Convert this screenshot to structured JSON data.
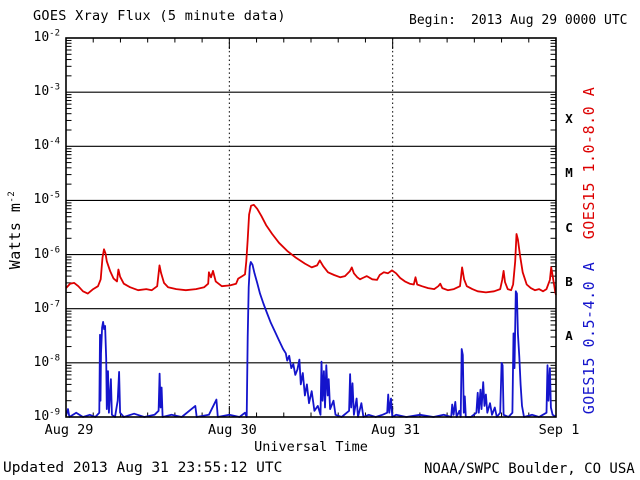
{
  "header": {
    "title": "GOES Xray Flux (5 minute data)",
    "begin_label": "Begin:",
    "begin_value": "2013 Aug 29 0000 UTC"
  },
  "footer": {
    "updated": "Updated 2013 Aug 31 23:55:12 UTC",
    "source": "NOAA/SWPC Boulder, CO USA"
  },
  "colors": {
    "axis": "#000000",
    "background": "#ffffff",
    "long_series": "#dd0000",
    "short_series": "#1414cc"
  },
  "chart_data": {
    "type": "line",
    "title": "GOES Xray Flux (5 minute data)",
    "xlabel": "Universal Time",
    "ylabel": {
      "text": "Watts m",
      "sup": "-2"
    },
    "x_start": "2013 Aug 29 0000 UTC",
    "x_span_hours": 72,
    "x_ticks": [
      {
        "hours": 0,
        "label": "Aug 29"
      },
      {
        "hours": 24,
        "label": "Aug 30"
      },
      {
        "hours": 48,
        "label": "Aug 31"
      },
      {
        "hours": 72,
        "label": "Sep 1"
      }
    ],
    "x_minor_tick_interval_hours": 4,
    "y_scale": "log",
    "ylim": [
      1e-09,
      0.01
    ],
    "y_tick_exponents": [
      -2,
      -3,
      -4,
      -5,
      -6,
      -7,
      -8,
      -9
    ],
    "grid": {
      "horizontal_decade_lines": [
        -3,
        -4,
        -5,
        -6,
        -7,
        -8
      ],
      "vertical_dotted_hours": [
        24,
        48
      ]
    },
    "flare_classes": [
      {
        "label": "X",
        "center_exponent": -3.5
      },
      {
        "label": "M",
        "center_exponent": -4.5
      },
      {
        "label": "C",
        "center_exponent": -5.5
      },
      {
        "label": "B",
        "center_exponent": -6.5
      },
      {
        "label": "A",
        "center_exponent": -7.5
      }
    ],
    "series": [
      {
        "name": "GOES15 1.0-8.0 A",
        "color": "#dd0000",
        "points": [
          [
            0,
            2.4e-07
          ],
          [
            0.6,
            2.9e-07
          ],
          [
            1.2,
            3e-07
          ],
          [
            1.8,
            2.6e-07
          ],
          [
            2.5,
            2.1e-07
          ],
          [
            3.2,
            1.9e-07
          ],
          [
            4.0,
            2.3e-07
          ],
          [
            4.7,
            2.6e-07
          ],
          [
            5.1,
            3.5e-07
          ],
          [
            5.36,
            8.8e-07
          ],
          [
            5.58,
            1.25e-06
          ],
          [
            5.8,
            1.05e-06
          ],
          [
            6.0,
            7.5e-07
          ],
          [
            6.5,
            4.9e-07
          ],
          [
            7.0,
            3.6e-07
          ],
          [
            7.5,
            3.2e-07
          ],
          [
            7.7,
            5.3e-07
          ],
          [
            7.95,
            3.9e-07
          ],
          [
            8.5,
            2.9e-07
          ],
          [
            9.4,
            2.5e-07
          ],
          [
            10.6,
            2.2e-07
          ],
          [
            11.8,
            2.3e-07
          ],
          [
            12.6,
            2.2e-07
          ],
          [
            13.4,
            2.6e-07
          ],
          [
            13.74,
            6.3e-07
          ],
          [
            13.96,
            4.6e-07
          ],
          [
            14.4,
            3e-07
          ],
          [
            15.0,
            2.5e-07
          ],
          [
            16.2,
            2.3e-07
          ],
          [
            17.6,
            2.2e-07
          ],
          [
            19.1,
            2.3e-07
          ],
          [
            20.3,
            2.5e-07
          ],
          [
            20.9,
            2.9e-07
          ],
          [
            21.0,
            4.7e-07
          ],
          [
            21.3,
            3.8e-07
          ],
          [
            21.6,
            5e-07
          ],
          [
            22.0,
            3.2e-07
          ],
          [
            22.9,
            2.6e-07
          ],
          [
            24.1,
            2.7e-07
          ],
          [
            25.0,
            2.9e-07
          ],
          [
            25.3,
            3.6e-07
          ],
          [
            25.9,
            4e-07
          ],
          [
            26.3,
            4.3e-07
          ],
          [
            26.5,
            7.5e-07
          ],
          [
            26.7,
            1.9e-06
          ],
          [
            26.9,
            5.5e-06
          ],
          [
            27.2,
            8e-06
          ],
          [
            27.6,
            8.3e-06
          ],
          [
            28.1,
            7e-06
          ],
          [
            28.7,
            5.2e-06
          ],
          [
            29.4,
            3.5e-06
          ],
          [
            30.3,
            2.4e-06
          ],
          [
            31.3,
            1.65e-06
          ],
          [
            32.5,
            1.17e-06
          ],
          [
            33.8,
            8.7e-07
          ],
          [
            35.1,
            6.8e-07
          ],
          [
            36.1,
            5.8e-07
          ],
          [
            36.9,
            6.3e-07
          ],
          [
            37.3,
            7.8e-07
          ],
          [
            37.8,
            6.1e-07
          ],
          [
            38.5,
            4.7e-07
          ],
          [
            39.4,
            4.2e-07
          ],
          [
            40.3,
            3.8e-07
          ],
          [
            41.0,
            4e-07
          ],
          [
            41.7,
            4.9e-07
          ],
          [
            42.0,
            5.8e-07
          ],
          [
            42.3,
            4.5e-07
          ],
          [
            42.8,
            3.8e-07
          ],
          [
            43.2,
            3.5e-07
          ],
          [
            43.6,
            3.7e-07
          ],
          [
            44.2,
            4e-07
          ],
          [
            45.0,
            3.5e-07
          ],
          [
            45.7,
            3.4e-07
          ],
          [
            46.1,
            4.2e-07
          ],
          [
            46.7,
            4.7e-07
          ],
          [
            47.3,
            4.5e-07
          ],
          [
            47.9,
            5.1e-07
          ],
          [
            48.5,
            4.5e-07
          ],
          [
            49.1,
            3.7e-07
          ],
          [
            49.8,
            3.2e-07
          ],
          [
            50.5,
            2.9e-07
          ],
          [
            51.1,
            2.8e-07
          ],
          [
            51.35,
            3.8e-07
          ],
          [
            51.6,
            2.8e-07
          ],
          [
            52.3,
            2.6e-07
          ],
          [
            53.2,
            2.4e-07
          ],
          [
            54.1,
            2.3e-07
          ],
          [
            54.7,
            2.6e-07
          ],
          [
            55.0,
            2.9e-07
          ],
          [
            55.3,
            2.4e-07
          ],
          [
            56.1,
            2.2e-07
          ],
          [
            57.0,
            2.3e-07
          ],
          [
            57.9,
            2.6e-07
          ],
          [
            58.2,
            5.8e-07
          ],
          [
            58.5,
            3.5e-07
          ],
          [
            58.9,
            2.6e-07
          ],
          [
            59.7,
            2.3e-07
          ],
          [
            60.5,
            2.1e-07
          ],
          [
            61.7,
            2e-07
          ],
          [
            62.9,
            2.1e-07
          ],
          [
            63.8,
            2.3e-07
          ],
          [
            64.1,
            3.4e-07
          ],
          [
            64.3,
            5e-07
          ],
          [
            64.5,
            3.1e-07
          ],
          [
            64.9,
            2.3e-07
          ],
          [
            65.4,
            2.2e-07
          ],
          [
            65.7,
            2.8e-07
          ],
          [
            66.0,
            7.5e-07
          ],
          [
            66.2,
            2.4e-06
          ],
          [
            66.4,
            1.9e-06
          ],
          [
            66.7,
            1e-06
          ],
          [
            67.1,
            4.7e-07
          ],
          [
            67.7,
            2.8e-07
          ],
          [
            68.3,
            2.4e-07
          ],
          [
            68.9,
            2.2e-07
          ],
          [
            69.5,
            2.3e-07
          ],
          [
            70.1,
            2.1e-07
          ],
          [
            70.6,
            2.3e-07
          ],
          [
            71.1,
            3.4e-07
          ],
          [
            71.3,
            5.8e-07
          ],
          [
            71.5,
            4.1e-07
          ],
          [
            71.9,
            2e-07
          ],
          [
            72,
            1.8e-07
          ]
        ]
      },
      {
        "name": "GOES15 0.5-4.0 A",
        "color": "#1414cc",
        "points": [
          [
            0,
            1.05e-09
          ],
          [
            0.3,
            1.4e-09
          ],
          [
            0.5,
            1e-09
          ],
          [
            1.5,
            1.2e-09
          ],
          [
            2.5,
            1e-09
          ],
          [
            3.5,
            1.1e-09
          ],
          [
            4.3,
            1e-09
          ],
          [
            4.9,
            1.2e-09
          ],
          [
            5.0,
            3.3e-08
          ],
          [
            5.07,
            2e-09
          ],
          [
            5.15,
            1.5e-08
          ],
          [
            5.3,
            4.5e-08
          ],
          [
            5.45,
            5.7e-08
          ],
          [
            5.6,
            4.2e-08
          ],
          [
            5.75,
            4.8e-08
          ],
          [
            5.9,
            1.2e-08
          ],
          [
            6.0,
            1.4e-09
          ],
          [
            6.17,
            7e-09
          ],
          [
            6.3,
            1.2e-09
          ],
          [
            6.6,
            5e-09
          ],
          [
            6.75,
            1.1e-09
          ],
          [
            7.2,
            1e-09
          ],
          [
            7.6,
            2e-09
          ],
          [
            7.8,
            6.8e-09
          ],
          [
            7.95,
            1.2e-09
          ],
          [
            8.5,
            1e-09
          ],
          [
            10,
            1.15e-09
          ],
          [
            11.5,
            1e-09
          ],
          [
            13,
            1.1e-09
          ],
          [
            13.6,
            1.3e-09
          ],
          [
            13.75,
            6.3e-09
          ],
          [
            13.9,
            1.5e-09
          ],
          [
            14.05,
            3.5e-09
          ],
          [
            14.2,
            1e-09
          ],
          [
            15.5,
            1.1e-09
          ],
          [
            17,
            1e-09
          ],
          [
            19.0,
            1.6e-09
          ],
          [
            19.2,
            1e-09
          ],
          [
            21,
            1.1e-09
          ],
          [
            22.1,
            2.1e-09
          ],
          [
            22.3,
            1e-09
          ],
          [
            24,
            1.1e-09
          ],
          [
            25.5,
            1e-09
          ],
          [
            26.3,
            1.2e-09
          ],
          [
            26.55,
            1e-09
          ],
          [
            26.7,
            3e-08
          ],
          [
            26.85,
            2.5e-07
          ],
          [
            27.0,
            6e-07
          ],
          [
            27.15,
            7.3e-07
          ],
          [
            27.4,
            6.5e-07
          ],
          [
            27.7,
            4.5e-07
          ],
          [
            28.1,
            3e-07
          ],
          [
            28.5,
            1.9e-07
          ],
          [
            29.0,
            1.25e-07
          ],
          [
            29.5,
            8.5e-08
          ],
          [
            30.1,
            5.5e-08
          ],
          [
            30.7,
            3.8e-08
          ],
          [
            31.3,
            2.6e-08
          ],
          [
            31.9,
            1.8e-08
          ],
          [
            32.3,
            1.5e-08
          ],
          [
            32.5,
            1.1e-08
          ],
          [
            32.8,
            1.35e-08
          ],
          [
            33.1,
            8e-09
          ],
          [
            33.4,
            9.5e-09
          ],
          [
            33.7,
            6e-09
          ],
          [
            34.0,
            7.5e-09
          ],
          [
            34.3,
            1.15e-08
          ],
          [
            34.5,
            4e-09
          ],
          [
            34.8,
            6.5e-09
          ],
          [
            35.1,
            2.5e-09
          ],
          [
            35.4,
            4e-09
          ],
          [
            35.7,
            1.8e-09
          ],
          [
            36.1,
            3e-09
          ],
          [
            36.5,
            1.3e-09
          ],
          [
            37.0,
            1.6e-09
          ],
          [
            37.4,
            1.1e-09
          ],
          [
            37.55,
            1.05e-08
          ],
          [
            37.7,
            2e-09
          ],
          [
            37.9,
            7e-09
          ],
          [
            38.05,
            1.5e-09
          ],
          [
            38.25,
            9e-09
          ],
          [
            38.45,
            2.5e-09
          ],
          [
            38.6,
            5e-09
          ],
          [
            38.8,
            1.4e-09
          ],
          [
            39.3,
            2e-09
          ],
          [
            39.6,
            1.1e-09
          ],
          [
            40.5,
            1e-09
          ],
          [
            41.6,
            1.3e-09
          ],
          [
            41.75,
            6.2e-09
          ],
          [
            41.9,
            1.5e-09
          ],
          [
            42.1,
            4.2e-09
          ],
          [
            42.3,
            1.1e-09
          ],
          [
            42.7,
            2.2e-09
          ],
          [
            42.9,
            1e-09
          ],
          [
            43.4,
            1.8e-09
          ],
          [
            43.7,
            1e-09
          ],
          [
            44.5,
            1.1e-09
          ],
          [
            45.5,
            1e-09
          ],
          [
            46.5,
            1.1e-09
          ],
          [
            47.2,
            1.2e-09
          ],
          [
            47.35,
            2.6e-09
          ],
          [
            47.5,
            1.2e-09
          ],
          [
            47.75,
            2.2e-09
          ],
          [
            47.95,
            1e-09
          ],
          [
            48.5,
            1.1e-09
          ],
          [
            50,
            1e-09
          ],
          [
            52,
            1.1e-09
          ],
          [
            54,
            1e-09
          ],
          [
            55.5,
            1.1e-09
          ],
          [
            56.6,
            1e-09
          ],
          [
            56.75,
            1.7e-09
          ],
          [
            56.95,
            1.1e-09
          ],
          [
            57.2,
            1.9e-09
          ],
          [
            57.4,
            1e-09
          ],
          [
            57.8,
            1.3e-09
          ],
          [
            58.0,
            1e-09
          ],
          [
            58.15,
            1.8e-08
          ],
          [
            58.3,
            1.4e-08
          ],
          [
            58.45,
            1.2e-09
          ],
          [
            58.6,
            2.4e-09
          ],
          [
            58.75,
            1e-09
          ],
          [
            59.5,
            1e-09
          ],
          [
            60.3,
            1.2e-09
          ],
          [
            60.5,
            2.8e-09
          ],
          [
            60.65,
            1.2e-09
          ],
          [
            60.9,
            3.2e-09
          ],
          [
            61.05,
            1.4e-09
          ],
          [
            61.3,
            4.4e-09
          ],
          [
            61.5,
            1.6e-09
          ],
          [
            61.7,
            2.6e-09
          ],
          [
            61.9,
            1.2e-09
          ],
          [
            62.3,
            1.8e-09
          ],
          [
            62.6,
            1.1e-09
          ],
          [
            63.0,
            1.5e-09
          ],
          [
            63.3,
            1e-09
          ],
          [
            63.8,
            1.2e-09
          ],
          [
            64.0,
            1e-08
          ],
          [
            64.15,
            9e-09
          ],
          [
            64.3,
            1.1e-09
          ],
          [
            65.0,
            1e-09
          ],
          [
            65.6,
            1.2e-09
          ],
          [
            65.75,
            3.5e-08
          ],
          [
            65.9,
            8e-09
          ],
          [
            66.1,
            2.1e-07
          ],
          [
            66.25,
            1.9e-07
          ],
          [
            66.4,
            3.5e-08
          ],
          [
            66.6,
            1.3e-08
          ],
          [
            66.8,
            4e-09
          ],
          [
            67.0,
            1.6e-09
          ],
          [
            67.3,
            1e-09
          ],
          [
            68.5,
            1.1e-09
          ],
          [
            69.5,
            1e-09
          ],
          [
            70.6,
            1.2e-09
          ],
          [
            70.75,
            9e-09
          ],
          [
            70.9,
            2e-09
          ],
          [
            71.1,
            8e-09
          ],
          [
            71.25,
            1.5e-09
          ],
          [
            71.5,
            1.1e-09
          ],
          [
            72,
            1e-09
          ]
        ]
      }
    ],
    "legend_position": "right-rotated"
  }
}
